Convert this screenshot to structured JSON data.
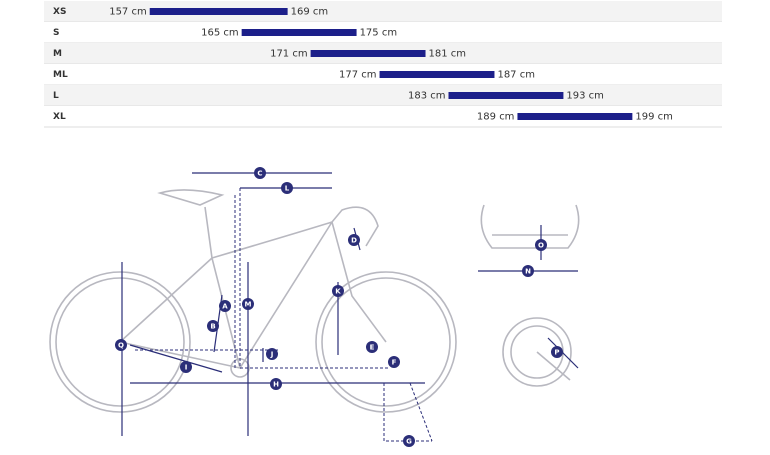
{
  "chart_data": {
    "type": "range",
    "categories": [
      "XS",
      "S",
      "M",
      "ML",
      "L",
      "XL"
    ],
    "series": [
      {
        "color": "#1c1f8a",
        "values": [
          157,
          165,
          171,
          177,
          183,
          189
        ],
        "value_labels": [
          "157 cm",
          "165 cm",
          "171 cm",
          "177 cm",
          "183 cm",
          "189 cm"
        ]
      },
      {
        "color": "#1c1f8a",
        "values": [
          169,
          175,
          181,
          187,
          193,
          199
        ],
        "value_labels": [
          "169 cm",
          "175 cm",
          "181 cm",
          "187 cm",
          "193 cm",
          "199 cm"
        ]
      }
    ],
    "xlim": [
      147.8,
      206.8
    ]
  },
  "diagram": {
    "labels": [
      "C",
      "L",
      "D",
      "A",
      "M",
      "B",
      "K",
      "Q",
      "J",
      "E",
      "I",
      "F",
      "H",
      "G",
      "O",
      "N",
      "P"
    ]
  }
}
